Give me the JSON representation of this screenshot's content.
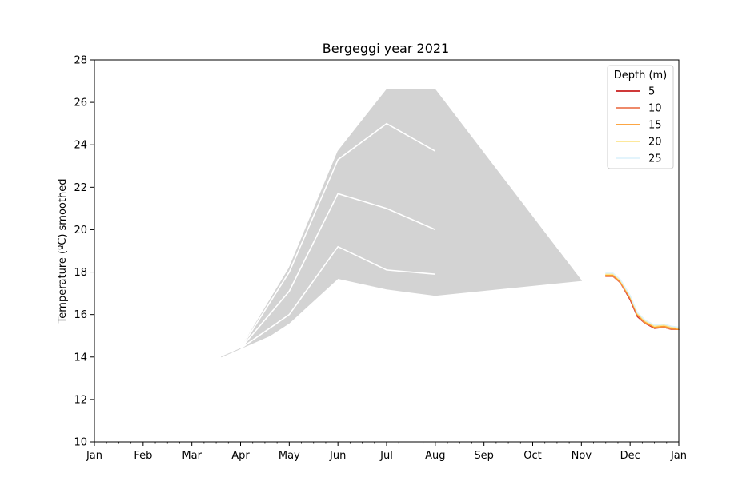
{
  "chart_data": {
    "type": "line",
    "title": "Bergeggi year 2021",
    "xlabel": "",
    "ylabel": "Temperature (ºC) smoothed",
    "ylim": [
      10,
      28
    ],
    "yticks": [
      10,
      12,
      14,
      16,
      18,
      20,
      22,
      24,
      26,
      28
    ],
    "xlim": [
      0,
      12
    ],
    "xticks": [
      {
        "x": 0,
        "label": "Jan"
      },
      {
        "x": 1,
        "label": "Feb"
      },
      {
        "x": 2,
        "label": "Mar"
      },
      {
        "x": 3,
        "label": "Apr"
      },
      {
        "x": 4,
        "label": "May"
      },
      {
        "x": 5,
        "label": "Jun"
      },
      {
        "x": 6,
        "label": "Jul"
      },
      {
        "x": 7,
        "label": "Aug"
      },
      {
        "x": 8,
        "label": "Sep"
      },
      {
        "x": 9,
        "label": "Oct"
      },
      {
        "x": 10,
        "label": "Nov"
      },
      {
        "x": 11,
        "label": "Dec"
      },
      {
        "x": 12,
        "label": "Jan"
      }
    ],
    "grid": false,
    "legend": {
      "title": "Depth (m)",
      "placement": "top-right"
    },
    "envelope": {
      "color": "#d3d3d3",
      "upper": [
        [
          2.6,
          14.0
        ],
        [
          3.0,
          14.4
        ],
        [
          4.0,
          18.2
        ],
        [
          5.0,
          23.7
        ],
        [
          6.0,
          26.6
        ],
        [
          7.0,
          26.6
        ],
        [
          10.0,
          17.6
        ]
      ],
      "lower": [
        [
          10.0,
          17.6
        ],
        [
          7.0,
          16.9
        ],
        [
          6.0,
          17.2
        ],
        [
          5.0,
          17.7
        ],
        [
          4.0,
          15.6
        ],
        [
          3.6,
          15.0
        ],
        [
          3.0,
          14.4
        ],
        [
          2.6,
          14.0
        ]
      ]
    },
    "percentile_lines": {
      "color": "#ffffff",
      "lines": [
        [
          [
            3.0,
            14.4
          ],
          [
            4.0,
            18.0
          ],
          [
            5.0,
            23.3
          ],
          [
            6.0,
            25.0
          ],
          [
            7.0,
            23.7
          ]
        ],
        [
          [
            3.0,
            14.4
          ],
          [
            4.0,
            17.1
          ],
          [
            5.0,
            21.7
          ],
          [
            6.0,
            21.0
          ],
          [
            7.0,
            20.0
          ]
        ],
        [
          [
            3.0,
            14.4
          ],
          [
            4.0,
            16.0
          ],
          [
            5.0,
            19.2
          ],
          [
            6.0,
            18.1
          ],
          [
            7.0,
            17.9
          ]
        ]
      ]
    },
    "gap_segment": {
      "color": "#ffffff",
      "points": [
        [
          -0.1,
          14.6
        ],
        [
          3.1,
          14.6
        ]
      ]
    },
    "series": [
      {
        "name": "5",
        "color": "#c81d1d",
        "points": [
          [
            10.5,
            17.8
          ],
          [
            10.65,
            17.8
          ],
          [
            10.8,
            17.5
          ],
          [
            11.0,
            16.7
          ],
          [
            11.15,
            15.9
          ],
          [
            11.3,
            15.6
          ],
          [
            11.5,
            15.35
          ],
          [
            11.7,
            15.4
          ],
          [
            11.85,
            15.3
          ],
          [
            12.0,
            15.3
          ]
        ]
      },
      {
        "name": "10",
        "color": "#ec7a54",
        "points": [
          [
            10.5,
            17.8
          ],
          [
            10.65,
            17.8
          ],
          [
            10.8,
            17.5
          ],
          [
            11.0,
            16.75
          ],
          [
            11.15,
            15.95
          ],
          [
            11.3,
            15.6
          ],
          [
            11.5,
            15.4
          ],
          [
            11.7,
            15.4
          ],
          [
            11.85,
            15.3
          ],
          [
            12.0,
            15.3
          ]
        ]
      },
      {
        "name": "15",
        "color": "#fb9a2a",
        "points": [
          [
            10.5,
            17.85
          ],
          [
            10.65,
            17.85
          ],
          [
            10.8,
            17.55
          ],
          [
            11.0,
            16.8
          ],
          [
            11.15,
            16.0
          ],
          [
            11.3,
            15.65
          ],
          [
            11.5,
            15.4
          ],
          [
            11.7,
            15.45
          ],
          [
            11.85,
            15.35
          ],
          [
            12.0,
            15.3
          ]
        ]
      },
      {
        "name": "20",
        "color": "#fde58d",
        "points": [
          [
            10.5,
            17.9
          ],
          [
            10.65,
            17.9
          ],
          [
            10.8,
            17.6
          ],
          [
            11.0,
            16.85
          ],
          [
            11.15,
            16.05
          ],
          [
            11.3,
            15.7
          ],
          [
            11.5,
            15.45
          ],
          [
            11.7,
            15.5
          ],
          [
            11.85,
            15.4
          ],
          [
            12.0,
            15.35
          ]
        ]
      },
      {
        "name": "25",
        "color": "#dff3fb",
        "points": [
          [
            10.5,
            17.95
          ],
          [
            10.65,
            17.95
          ],
          [
            10.8,
            17.65
          ],
          [
            11.0,
            16.9
          ],
          [
            11.15,
            16.1
          ],
          [
            11.3,
            15.75
          ],
          [
            11.5,
            15.5
          ],
          [
            11.7,
            15.55
          ],
          [
            11.85,
            15.45
          ],
          [
            12.0,
            15.4
          ]
        ]
      }
    ]
  }
}
